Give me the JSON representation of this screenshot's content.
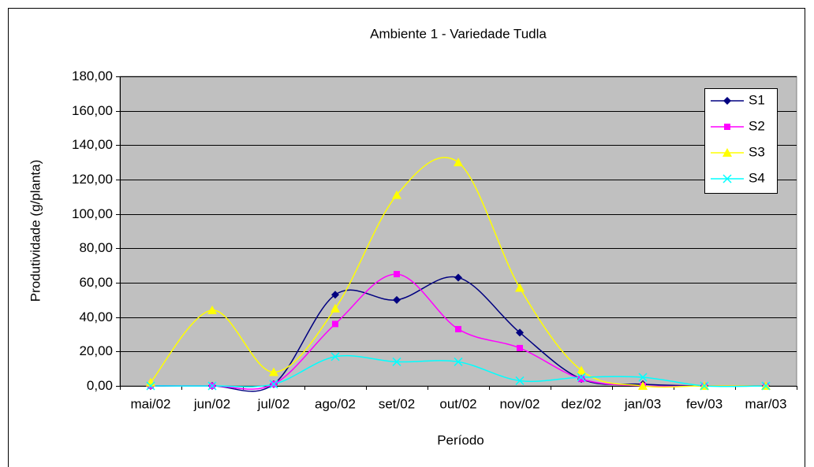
{
  "chart_data": {
    "type": "line",
    "title": "Ambiente 1 - Variedade Tudla",
    "x_label": "Período",
    "y_label": "Produtividade (g/planta)",
    "categories": [
      "mai/02",
      "jun/02",
      "jul/02",
      "ago/02",
      "set/02",
      "out/02",
      "nov/02",
      "dez/02",
      "jan/03",
      "fev/03",
      "mar/03"
    ],
    "series": [
      {
        "name": "S1",
        "color": "#000080",
        "marker": "diamond",
        "values": [
          0,
          0,
          1,
          53,
          50,
          63,
          31,
          4,
          1,
          0,
          0
        ]
      },
      {
        "name": "S2",
        "color": "#ff00ff",
        "marker": "square",
        "values": [
          0,
          0,
          1,
          36,
          65,
          33,
          22,
          4,
          0,
          0,
          0
        ]
      },
      {
        "name": "S3",
        "color": "#ffff00",
        "marker": "triangle",
        "values": [
          2,
          44,
          8,
          45,
          111,
          130,
          57,
          9,
          0,
          0,
          0
        ]
      },
      {
        "name": "S4",
        "color": "#00ffff",
        "marker": "x",
        "values": [
          0,
          0,
          1,
          17,
          14,
          14,
          3,
          5,
          5,
          0,
          0
        ]
      }
    ],
    "ylim": [
      0,
      180
    ],
    "yticks": [
      {
        "value": 0,
        "label": "0,00"
      },
      {
        "value": 20,
        "label": "20,00"
      },
      {
        "value": 40,
        "label": "40,00"
      },
      {
        "value": 60,
        "label": "60,00"
      },
      {
        "value": 80,
        "label": "80,00"
      },
      {
        "value": 100,
        "label": "100,00"
      },
      {
        "value": 120,
        "label": "120,00"
      },
      {
        "value": 140,
        "label": "140,00"
      },
      {
        "value": 160,
        "label": "160,00"
      },
      {
        "value": 180,
        "label": "180,00"
      }
    ],
    "grid": true,
    "smooth": true,
    "legend": "upper right",
    "plot_background": "#c0c0c0"
  }
}
